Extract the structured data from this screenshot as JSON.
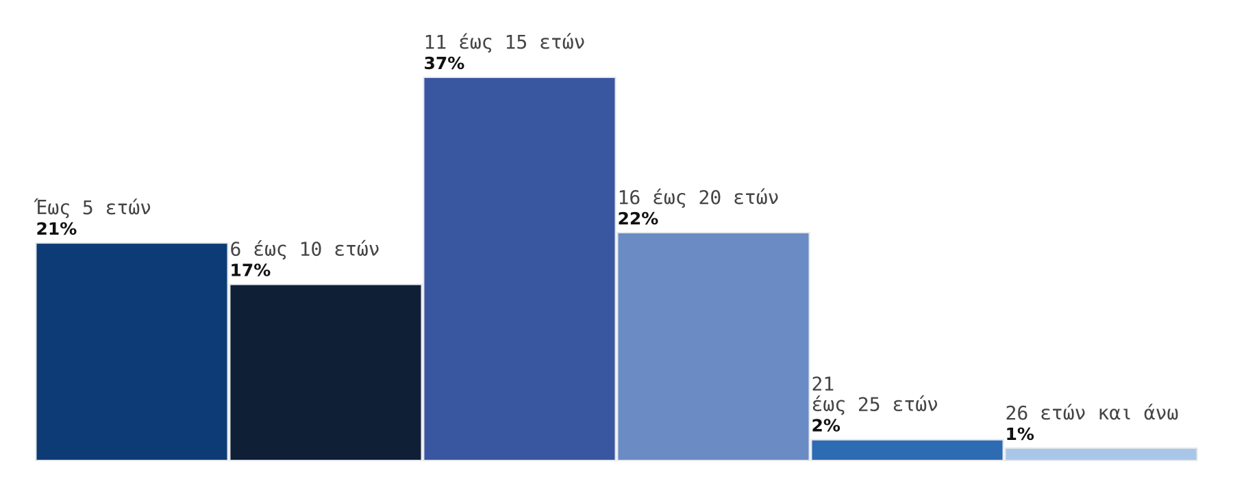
{
  "chart_data": {
    "type": "bar",
    "title": "",
    "xlabel": "",
    "ylabel": "",
    "grid": false,
    "categories": [
      "Έως 5 ετών",
      "6 έως 10 ετών",
      "11 έως 15 ετών",
      "16 έως 20 ετών",
      "21 έως 25 ετών",
      "26 ετών και άνω"
    ],
    "values": [
      21,
      17,
      37,
      22,
      2,
      1
    ],
    "value_labels": [
      "21%",
      "17%",
      "37%",
      "22%",
      "2%",
      "1%"
    ],
    "colors": [
      "#0d3b75",
      "#0f1f36",
      "#3956a0",
      "#6a8bc4",
      "#2d6bb2",
      "#a8c7e8"
    ],
    "ylim": [
      0,
      37
    ]
  }
}
